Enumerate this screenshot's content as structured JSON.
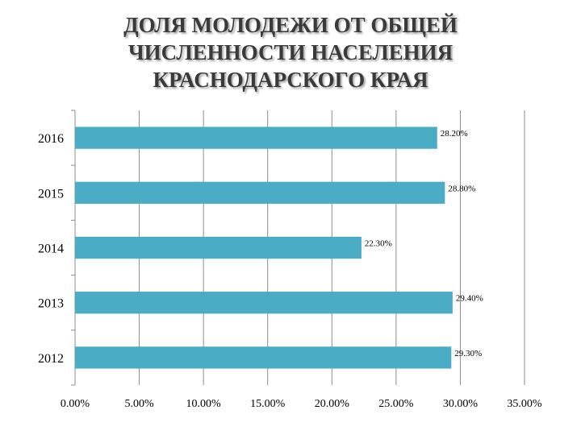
{
  "colors": {
    "bar": "#4bacc6",
    "grid": "#8c8c8c",
    "axis": "#8c8c8c"
  },
  "chart_data": {
    "type": "bar",
    "orientation": "horizontal",
    "title_lines": [
      "ДОЛЯ МОЛОДЕЖИ ОТ ОБЩЕЙ",
      "ЧИСЛЕННОСТИ НАСЕЛЕНИЯ",
      "КРАСНОДАРСКОГО КРАЯ"
    ],
    "categories": [
      "2016",
      "2015",
      "2014",
      "2013",
      "2012"
    ],
    "values": [
      28.2,
      28.8,
      22.3,
      29.4,
      29.3
    ],
    "data_labels": [
      "28.20%",
      "28.80%",
      "22.30%",
      "29.40%",
      "29.30%"
    ],
    "x_ticks": [
      0,
      5,
      10,
      15,
      20,
      25,
      30,
      35
    ],
    "x_tick_labels": [
      "0.00%",
      "5.00%",
      "10.00%",
      "15.00%",
      "20.00%",
      "25.00%",
      "30.00%",
      "35.00%"
    ],
    "xlim": [
      0,
      35
    ],
    "grid": true,
    "legend": "none"
  }
}
